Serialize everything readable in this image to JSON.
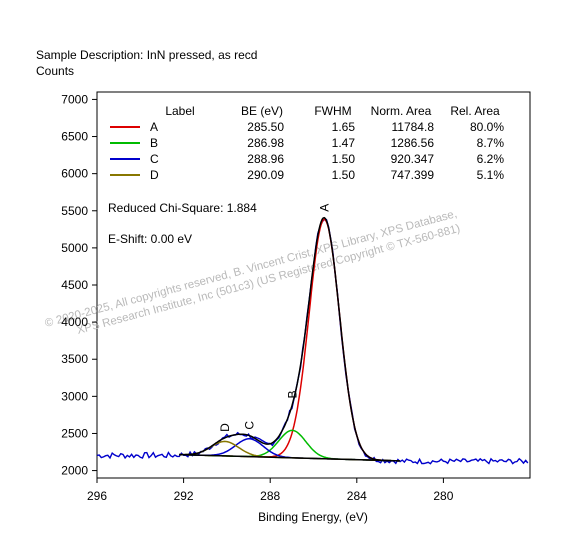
{
  "chart_data": {
    "type": "line",
    "header": {
      "sample_description": "Sample Description:  InN pressed, as recd",
      "ylabel": "Counts"
    },
    "xlabel": "Binding Energy, (eV)",
    "xlim": [
      296,
      276
    ],
    "ylim": [
      1900,
      7100
    ],
    "x_ticks": [
      296,
      292,
      288,
      284,
      280
    ],
    "y_ticks": [
      2000,
      2500,
      3000,
      3500,
      4000,
      4500,
      5000,
      5500,
      6000,
      6500,
      7000
    ],
    "table": {
      "headers": [
        "Label",
        "BE (eV)",
        "FWHM",
        "Norm. Area",
        "Rel. Area"
      ],
      "rows": [
        {
          "label": "A",
          "be": "285.50",
          "fwhm": "1.65",
          "norm_area": "11784.8",
          "rel_area": "80.0%",
          "color": "#dd0000"
        },
        {
          "label": "B",
          "be": "286.98",
          "fwhm": "1.47",
          "norm_area": "1286.56",
          "rel_area": "8.7%",
          "color": "#00bb00"
        },
        {
          "label": "C",
          "be": "288.96",
          "fwhm": "1.50",
          "norm_area": "920.347",
          "rel_area": "6.2%",
          "color": "#0000cc"
        },
        {
          "label": "D",
          "be": "290.09",
          "fwhm": "1.50",
          "norm_area": "747.399",
          "rel_area": "5.1%",
          "color": "#887700"
        }
      ]
    },
    "annotations": {
      "chi_square": "Reduced Chi-Square: 1.884",
      "eshift": "E-Shift: 0.00 eV"
    },
    "watermark": {
      "line1": "© 2020-2025,  All copyrights reserved,   B. Vincent Crist,  XPS Library, XPS Database,",
      "line2": "XPS Research Institute, Inc (501c3)   (US Registered Copyright © TX-560-881)"
    },
    "baseline": {
      "x_start": 292.2,
      "y_start": 2215,
      "x_end": 282.0,
      "y_end": 2130
    },
    "peaks": [
      {
        "label": "A",
        "center": 285.5,
        "fwhm": 1.65,
        "height": 3225,
        "color": "#dd0000"
      },
      {
        "label": "B",
        "center": 286.98,
        "fwhm": 1.47,
        "height": 370,
        "color": "#00bb00"
      },
      {
        "label": "C",
        "center": 288.96,
        "fwhm": 1.5,
        "height": 240,
        "color": "#0000cc"
      },
      {
        "label": "D",
        "center": 290.09,
        "fwhm": 1.5,
        "height": 195,
        "color": "#887700"
      }
    ],
    "colors": {
      "raw": "#0000cc",
      "envelope": "#000000",
      "baseline": "#000000"
    }
  }
}
